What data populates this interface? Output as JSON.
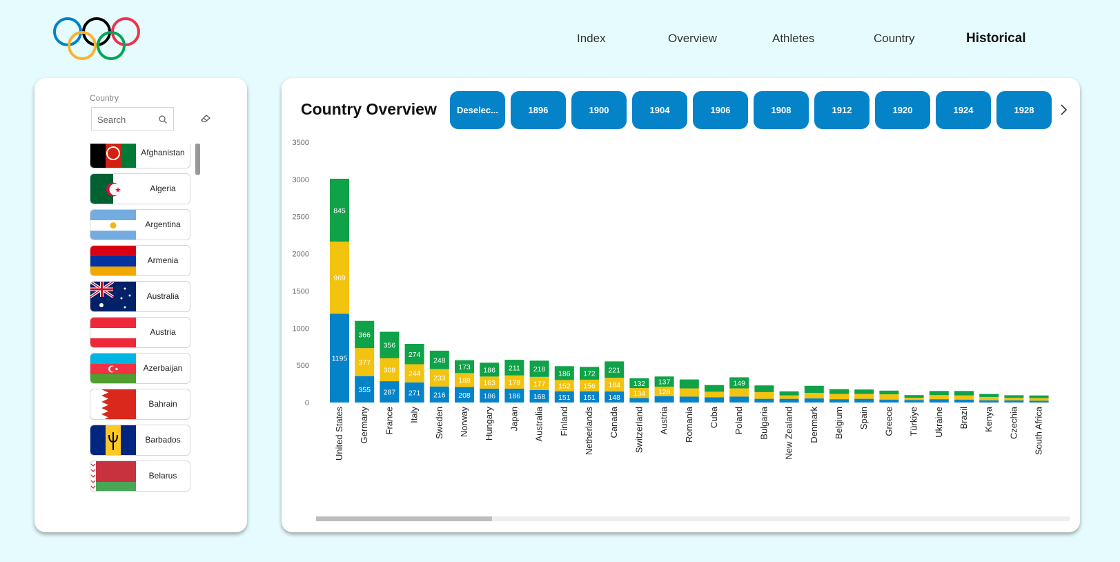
{
  "nav": {
    "items": [
      {
        "label": "Index",
        "active": false
      },
      {
        "label": "Overview",
        "active": false
      },
      {
        "label": "Athletes",
        "active": false
      },
      {
        "label": "Country",
        "active": false
      },
      {
        "label": "Historical",
        "active": true
      }
    ]
  },
  "logo": {
    "icon": "olympic-rings-icon",
    "colors": [
      "#0081c8",
      "#fcb131",
      "#000000",
      "#00a651",
      "#ee334e"
    ]
  },
  "slicer": {
    "label": "Country",
    "search_placeholder": "Search",
    "countries": [
      "Afghanistan",
      "Algeria",
      "Argentina",
      "Armenia",
      "Australia",
      "Austria",
      "Azerbaijan",
      "Bahrain",
      "Barbados",
      "Belarus"
    ]
  },
  "chart_title": "Country Overview",
  "year_buttons": [
    "Deselec...",
    "1896",
    "1900",
    "1904",
    "1906",
    "1908",
    "1912",
    "1920",
    "1924",
    "1928"
  ],
  "colors": {
    "bronze_series": "#0483c9",
    "silver_series": "#f2c30f",
    "gold_series": "#0fa248",
    "button": "#0483c9"
  },
  "chart_data": {
    "type": "bar",
    "stacked": true,
    "categories": [
      "United States",
      "Germany",
      "France",
      "Italy",
      "Sweden",
      "Norway",
      "Hungary",
      "Japan",
      "Australia",
      "Finland",
      "Netherlands",
      "Canada",
      "Switzerland",
      "Austria",
      "Romania",
      "Cuba",
      "Poland",
      "Bulgaria",
      "New Zealand",
      "Denmark",
      "Belgium",
      "Spain",
      "Greece",
      "Türkiye",
      "Ukraine",
      "Brazil",
      "Kenya",
      "Czechia",
      "South Africa"
    ],
    "series": [
      {
        "color": "#0483c9",
        "values": [
          1195,
          355,
          287,
          271,
          216,
          208,
          186,
          186,
          168,
          151,
          151,
          148,
          60,
          85,
          80,
          70,
          80,
          50,
          50,
          55,
          45,
          50,
          40,
          35,
          45,
          40,
          30,
          28,
          25
        ],
        "labels": [
          "1195",
          "355",
          "287",
          "271",
          "216",
          "208",
          "186",
          "186",
          "168",
          "151",
          "151",
          "148",
          "",
          "",
          "",
          "",
          "",
          "",
          "",
          "",
          "",
          "",
          "",
          "",
          "",
          "",
          "",
          "",
          ""
        ]
      },
      {
        "color": "#f2c30f",
        "values": [
          969,
          377,
          308,
          244,
          233,
          188,
          163,
          178,
          177,
          152,
          156,
          184,
          134,
          128,
          110,
          75,
          110,
          90,
          45,
          75,
          70,
          65,
          70,
          30,
          55,
          55,
          45,
          35,
          35
        ],
        "labels": [
          "969",
          "377",
          "308",
          "244",
          "233",
          "188",
          "163",
          "178",
          "177",
          "152",
          "156",
          "184",
          "134",
          "128",
          "",
          "",
          "",
          "",
          "",
          "",
          "",
          "",
          "",
          "",
          "",
          "",
          "",
          "",
          ""
        ]
      },
      {
        "color": "#0fa248",
        "values": [
          845,
          366,
          356,
          274,
          248,
          173,
          186,
          211,
          218,
          186,
          172,
          221,
          132,
          137,
          120,
          90,
          149,
          90,
          55,
          95,
          65,
          60,
          50,
          35,
          55,
          60,
          40,
          35,
          35
        ],
        "labels": [
          "845",
          "366",
          "356",
          "274",
          "248",
          "173",
          "186",
          "211",
          "218",
          "186",
          "172",
          "221",
          "132",
          "137",
          "",
          "",
          "149",
          "",
          "",
          "",
          "",
          "",
          "",
          "",
          "",
          "",
          "",
          "",
          ""
        ]
      }
    ],
    "y_ticks": [
      "0",
      "500",
      "1000",
      "1500",
      "2000",
      "2500",
      "3000",
      "3500"
    ],
    "ylim": [
      0,
      3500
    ],
    "grid": false,
    "legend": "none"
  }
}
